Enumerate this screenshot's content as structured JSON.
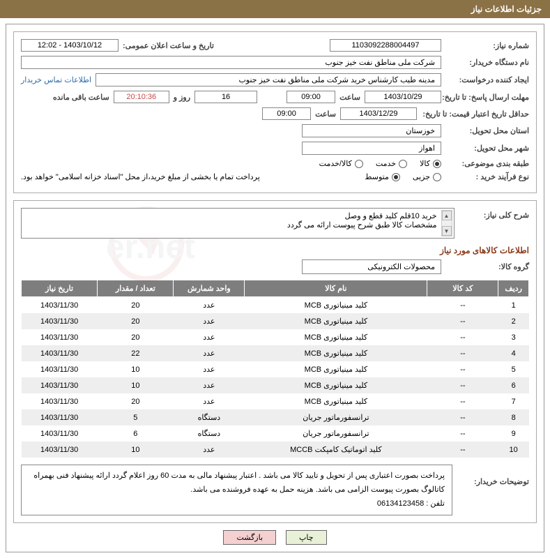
{
  "header": {
    "title": "جزئیات اطلاعات نیاز"
  },
  "fields": {
    "need_number_label": "شماره نیاز:",
    "need_number": "1103092288004497",
    "announce_date_label": "تاریخ و ساعت اعلان عمومی:",
    "announce_date": "1403/10/12 - 12:02",
    "buyer_org_label": "نام دستگاه خریدار:",
    "buyer_org": "شرکت ملی مناطق نفت خیز جنوب",
    "requester_label": "ایجاد کننده درخواست:",
    "requester": "مدینه طیب کارشناس خرید شرکت ملی مناطق نفت خیز جنوب",
    "contact_link": "اطلاعات تماس خریدار",
    "deadline_label": "مهلت ارسال پاسخ: تا تاریخ:",
    "deadline_date": "1403/10/29",
    "time_label": "ساعت",
    "deadline_time": "09:00",
    "days_remaining": "16",
    "days_and": "روز و",
    "time_remaining": "20:10:36",
    "time_remaining_color": "#c94a4a",
    "remaining_suffix": "ساعت باقی مانده",
    "validity_label": "حداقل تاریخ اعتبار قیمت: تا تاریخ:",
    "validity_date": "1403/12/29",
    "validity_time": "09:00",
    "province_label": "استان محل تحویل:",
    "province": "خوزستان",
    "city_label": "شهر محل تحویل:",
    "city": "اهواز",
    "subject_class_label": "طبقه بندی موضوعی:",
    "subject_opts": {
      "opt1": "کالا",
      "opt2": "خدمت",
      "opt3": "کالا/خدمت"
    },
    "process_label": "نوع فرآیند خرید :",
    "process_opts": {
      "opt1": "جزیی",
      "opt2": "متوسط"
    },
    "payment_note": "پرداخت تمام یا بخشی از مبلغ خرید،از محل \"اسناد خزانه اسلامی\" خواهد بود.",
    "need_desc_label": "شرح کلی نیاز:",
    "need_desc_line1": "خرید 10قلم کلید قطع و وصل",
    "need_desc_line2": "مشخصات کالا طبق شرح پیوست ارائه می گردد",
    "goods_section_title": "اطلاعات کالاهای مورد نیاز",
    "goods_group_label": "گروه کالا:",
    "goods_group": "محصولات الکترونیکی",
    "buyer_notes_label": "توضیحات خریدار:",
    "buyer_notes_line1": "پرداخت بصورت اعتباری پس از تحویل و تایید کالا می باشد . اعتبار پیشنهاد مالی به مدت 60 روز اعلام گردد  ارائه پیشنهاد فنی بهمراه کاتالوگ بصورت پیوست الزامی می باشد. هزینه حمل به عهده فروشنده می باشد.",
    "buyer_notes_line2": "تلفن : 06134123458"
  },
  "table": {
    "headers": {
      "row": "ردیف",
      "code": "کد کالا",
      "name": "نام کالا",
      "unit": "واحد شمارش",
      "qty": "تعداد / مقدار",
      "date": "تاریخ نیاز"
    },
    "rows": [
      {
        "n": "1",
        "code": "--",
        "name": "کلید مینیاتوری MCB",
        "unit": "عدد",
        "qty": "20",
        "date": "1403/11/30"
      },
      {
        "n": "2",
        "code": "--",
        "name": "کلید مینیاتوری MCB",
        "unit": "عدد",
        "qty": "20",
        "date": "1403/11/30"
      },
      {
        "n": "3",
        "code": "--",
        "name": "کلید مینیاتوری MCB",
        "unit": "عدد",
        "qty": "20",
        "date": "1403/11/30"
      },
      {
        "n": "4",
        "code": "--",
        "name": "کلید مینیاتوری MCB",
        "unit": "عدد",
        "qty": "22",
        "date": "1403/11/30"
      },
      {
        "n": "5",
        "code": "--",
        "name": "کلید مینیاتوری MCB",
        "unit": "عدد",
        "qty": "10",
        "date": "1403/11/30"
      },
      {
        "n": "6",
        "code": "--",
        "name": "کلید مینیاتوری MCB",
        "unit": "عدد",
        "qty": "10",
        "date": "1403/11/30"
      },
      {
        "n": "7",
        "code": "--",
        "name": "کلید مینیاتوری MCB",
        "unit": "عدد",
        "qty": "20",
        "date": "1403/11/30"
      },
      {
        "n": "8",
        "code": "--",
        "name": "ترانسفورماتور جریان",
        "unit": "دستگاه",
        "qty": "5",
        "date": "1403/11/30"
      },
      {
        "n": "9",
        "code": "--",
        "name": "ترانسفورماتور جریان",
        "unit": "دستگاه",
        "qty": "6",
        "date": "1403/11/30"
      },
      {
        "n": "10",
        "code": "--",
        "name": "کلید اتوماتیک کامپکت MCCB",
        "unit": "عدد",
        "qty": "10",
        "date": "1403/11/30"
      }
    ]
  },
  "buttons": {
    "print": "چاپ",
    "back": "بازگشت"
  },
  "colors": {
    "header_bg": "#8b7146",
    "table_header_bg": "#7e7e7e",
    "link": "#2e6aa8",
    "section_title": "#8b3a1a"
  }
}
